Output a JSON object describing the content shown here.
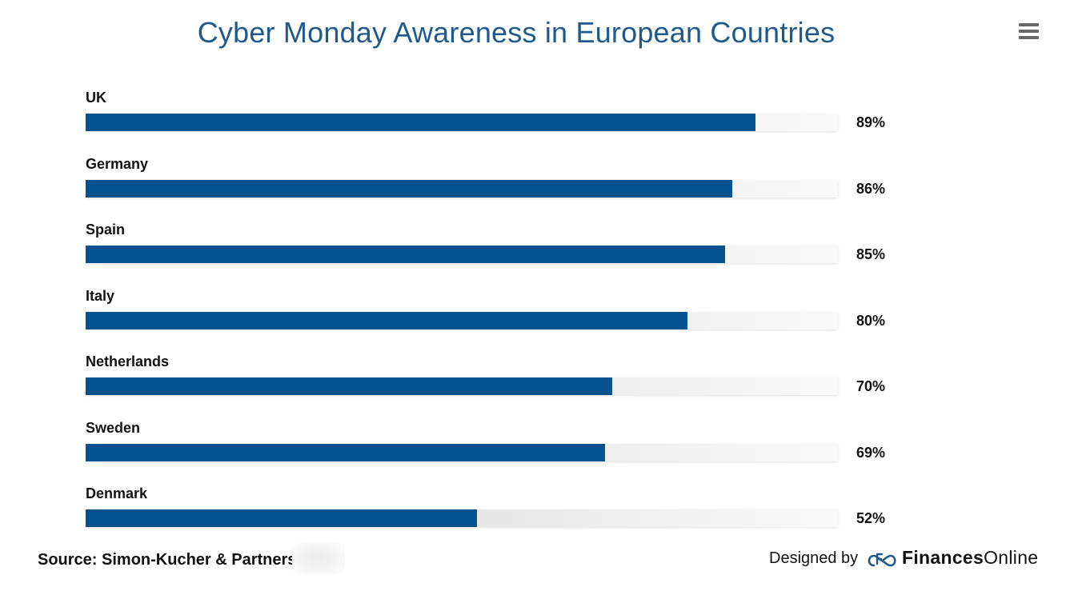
{
  "chart_data": {
    "type": "bar",
    "orientation": "horizontal",
    "title": "Cyber Monday Awareness in European Countries",
    "categories": [
      "UK",
      "Germany",
      "Spain",
      "Italy",
      "Netherlands",
      "Sweden",
      "Denmark"
    ],
    "values": [
      89,
      86,
      85,
      80,
      70,
      69,
      52
    ],
    "value_labels": [
      "89%",
      "86%",
      "85%",
      "80%",
      "70%",
      "69%",
      "52%"
    ],
    "xlim": [
      0,
      100
    ],
    "grid": false,
    "legend": "none",
    "bar_color": "#05528f",
    "track_color": "#e6e6e6"
  },
  "menu": {
    "icon": "hamburger-menu-icon"
  },
  "footer": {
    "source": "Source: Simon-Kucher & Partners",
    "designed_by": "Designed by",
    "brand_bold": "Finances",
    "brand_regular": "Online",
    "brand_icon": "finances-online-logo-icon"
  },
  "colors": {
    "title": "#1f5a8c",
    "bar": "#05528f"
  }
}
